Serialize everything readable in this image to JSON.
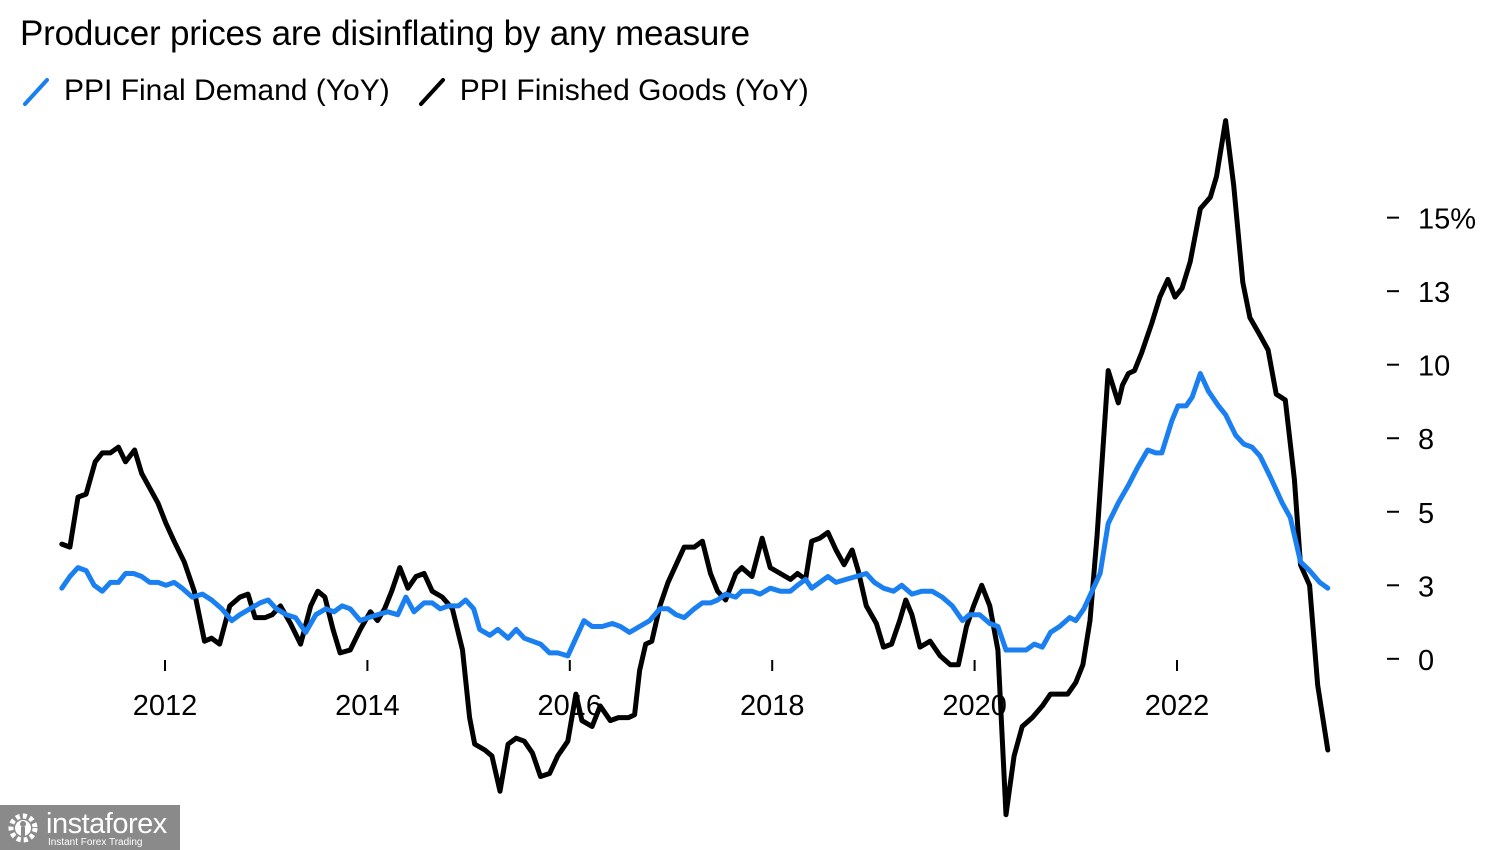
{
  "chart_data": {
    "type": "line",
    "title": "Producer prices are disinflating by any measure",
    "xlabel": "",
    "ylabel": "",
    "xlim": [
      2010,
      2024
    ],
    "ylim": [
      -6.5,
      19
    ],
    "x_ticks": [
      2012,
      2014,
      2016,
      2018,
      2020,
      2022
    ],
    "x_tick_labels": [
      "2012",
      "2014",
      "2016",
      "2018",
      "2020",
      "2022"
    ],
    "y_ticks": [
      15,
      12.5,
      10,
      7.5,
      5,
      2.5,
      0
    ],
    "y_tick_labels": [
      "15%",
      "13",
      "10",
      "8",
      "5",
      "3",
      "0"
    ],
    "y_axis_position": "right",
    "grid": false,
    "legend_position": "top-left",
    "series": [
      {
        "name": "PPI Final Demand (YoY)",
        "color": "#1a7ff0",
        "x": [
          2010.98,
          2011.06,
          2011.14,
          2011.22,
          2011.3,
          2011.38,
          2011.46,
          2011.54,
          2011.61,
          2011.69,
          2011.77,
          2011.85,
          2011.93,
          2012.01,
          2012.09,
          2012.17,
          2012.27,
          2012.37,
          2012.46,
          2012.56,
          2012.66,
          2012.74,
          2012.84,
          2012.94,
          2013.02,
          2013.1,
          2013.2,
          2013.29,
          2013.39,
          2013.49,
          2013.59,
          2013.67,
          2013.75,
          2013.83,
          2013.93,
          2014.01,
          2014.1,
          2014.2,
          2014.3,
          2014.38,
          2014.46,
          2014.56,
          2014.64,
          2014.72,
          2014.8,
          2014.9,
          2014.97,
          2015.05,
          2015.11,
          2015.21,
          2015.29,
          2015.39,
          2015.47,
          2015.55,
          2015.63,
          2015.71,
          2015.8,
          2015.88,
          2015.98,
          2016.06,
          2016.14,
          2016.22,
          2016.32,
          2016.42,
          2016.5,
          2016.59,
          2016.69,
          2016.79,
          2016.89,
          2016.97,
          2017.05,
          2017.13,
          2017.23,
          2017.31,
          2017.39,
          2017.46,
          2017.54,
          2017.64,
          2017.7,
          2017.8,
          2017.88,
          2017.98,
          2018.08,
          2018.18,
          2018.25,
          2018.33,
          2018.39,
          2018.47,
          2018.55,
          2018.63,
          2018.73,
          2018.83,
          2018.93,
          2019.01,
          2019.1,
          2019.2,
          2019.28,
          2019.38,
          2019.48,
          2019.58,
          2019.68,
          2019.78,
          2019.88,
          2019.95,
          2020.05,
          2020.15,
          2020.23,
          2020.31,
          2020.41,
          2020.51,
          2020.59,
          2020.67,
          2020.75,
          2020.84,
          2020.94,
          2021.0,
          2021.08,
          2021.16,
          2021.24,
          2021.32,
          2021.42,
          2021.52,
          2021.61,
          2021.71,
          2021.79,
          2021.85,
          2021.95,
          2022.01,
          2022.09,
          2022.15,
          2022.23,
          2022.31,
          2022.41,
          2022.48,
          2022.58,
          2022.66,
          2022.74,
          2022.82,
          2022.92,
          2023.04,
          2023.12,
          2023.22,
          2023.31,
          2023.41,
          2023.49
        ],
        "y": [
          2.4,
          2.8,
          3.1,
          3.0,
          2.5,
          2.3,
          2.6,
          2.6,
          2.9,
          2.9,
          2.8,
          2.6,
          2.6,
          2.5,
          2.6,
          2.4,
          2.1,
          2.2,
          2.0,
          1.7,
          1.3,
          1.5,
          1.7,
          1.9,
          2.0,
          1.7,
          1.5,
          1.4,
          0.9,
          1.5,
          1.7,
          1.6,
          1.8,
          1.7,
          1.3,
          1.4,
          1.5,
          1.6,
          1.5,
          2.1,
          1.6,
          1.9,
          1.9,
          1.7,
          1.8,
          1.8,
          2.0,
          1.7,
          1.0,
          0.8,
          1.0,
          0.7,
          1.0,
          0.7,
          0.6,
          0.5,
          0.2,
          0.2,
          0.1,
          0.7,
          1.3,
          1.1,
          1.1,
          1.2,
          1.1,
          0.9,
          1.1,
          1.3,
          1.7,
          1.7,
          1.5,
          1.4,
          1.7,
          1.9,
          1.9,
          2.0,
          2.2,
          2.1,
          2.3,
          2.3,
          2.2,
          2.4,
          2.3,
          2.3,
          2.5,
          2.7,
          2.4,
          2.6,
          2.8,
          2.6,
          2.7,
          2.8,
          2.9,
          2.6,
          2.4,
          2.3,
          2.5,
          2.2,
          2.3,
          2.3,
          2.1,
          1.8,
          1.3,
          1.5,
          1.5,
          1.2,
          1.1,
          0.3,
          0.3,
          0.3,
          0.5,
          0.4,
          0.9,
          1.1,
          1.4,
          1.3,
          1.7,
          2.3,
          2.9,
          4.6,
          5.3,
          5.9,
          6.5,
          7.1,
          7.0,
          7.0,
          8.1,
          8.6,
          8.6,
          8.9,
          9.7,
          9.1,
          8.6,
          8.3,
          7.6,
          7.3,
          7.2,
          6.9,
          6.2,
          5.3,
          4.8,
          3.3,
          3.0,
          2.6,
          2.4
        ]
      },
      {
        "name": "PPI Finished Goods (YoY)",
        "color": "#000000",
        "x": [
          2010.98,
          2011.06,
          2011.14,
          2011.22,
          2011.31,
          2011.38,
          2011.46,
          2011.54,
          2011.61,
          2011.7,
          2011.77,
          2011.85,
          2011.93,
          2012.01,
          2012.09,
          2012.19,
          2012.29,
          2012.39,
          2012.46,
          2012.54,
          2012.64,
          2012.74,
          2012.82,
          2012.89,
          2012.99,
          2013.06,
          2013.14,
          2013.24,
          2013.34,
          2013.44,
          2013.51,
          2013.58,
          2013.66,
          2013.73,
          2013.83,
          2013.93,
          2014.03,
          2014.1,
          2014.17,
          2014.24,
          2014.32,
          2014.4,
          2014.48,
          2014.56,
          2014.64,
          2014.74,
          2014.84,
          2014.94,
          2015.01,
          2015.06,
          2015.16,
          2015.23,
          2015.31,
          2015.39,
          2015.47,
          2015.55,
          2015.63,
          2015.71,
          2015.8,
          2015.88,
          2015.98,
          2016.06,
          2016.12,
          2016.22,
          2016.3,
          2016.4,
          2016.48,
          2016.58,
          2016.64,
          2016.69,
          2016.75,
          2016.81,
          2016.89,
          2016.97,
          2017.05,
          2017.13,
          2017.23,
          2017.31,
          2017.39,
          2017.46,
          2017.54,
          2017.64,
          2017.7,
          2017.8,
          2017.9,
          2017.98,
          2018.08,
          2018.18,
          2018.25,
          2018.33,
          2018.39,
          2018.47,
          2018.55,
          2018.63,
          2018.71,
          2018.79,
          2018.85,
          2018.93,
          2019.03,
          2019.1,
          2019.18,
          2019.26,
          2019.32,
          2019.38,
          2019.46,
          2019.56,
          2019.66,
          2019.76,
          2019.84,
          2019.92,
          2019.99,
          2020.07,
          2020.15,
          2020.23,
          2020.31,
          2020.39,
          2020.47,
          2020.57,
          2020.67,
          2020.75,
          2020.84,
          2020.92,
          2021.0,
          2021.07,
          2021.14,
          2021.21,
          2021.32,
          2021.42,
          2021.46,
          2021.52,
          2021.58,
          2021.65,
          2021.75,
          2021.83,
          2021.91,
          2021.98,
          2022.05,
          2022.13,
          2022.23,
          2022.33,
          2022.39,
          2022.48,
          2022.56,
          2022.65,
          2022.72,
          2022.82,
          2022.9,
          2022.98,
          2023.07,
          2023.16,
          2023.22,
          2023.31,
          2023.39,
          2023.49
        ],
        "y": [
          3.9,
          3.8,
          5.5,
          5.6,
          6.7,
          7.0,
          7.0,
          7.2,
          6.7,
          7.1,
          6.3,
          5.8,
          5.3,
          4.6,
          4.0,
          3.3,
          2.3,
          0.6,
          0.7,
          0.5,
          1.8,
          2.1,
          2.2,
          1.4,
          1.4,
          1.5,
          1.8,
          1.2,
          0.5,
          1.8,
          2.3,
          2.1,
          1.0,
          0.2,
          0.3,
          1.0,
          1.6,
          1.3,
          1.7,
          2.3,
          3.1,
          2.4,
          2.8,
          2.9,
          2.3,
          2.1,
          1.7,
          0.3,
          -2.0,
          -2.9,
          -3.1,
          -3.3,
          -4.5,
          -2.9,
          -2.7,
          -2.8,
          -3.2,
          -4.0,
          -3.9,
          -3.3,
          -2.8,
          -1.2,
          -2.1,
          -2.3,
          -1.6,
          -2.1,
          -2.0,
          -2.0,
          -1.9,
          -0.4,
          0.5,
          0.6,
          1.8,
          2.6,
          3.2,
          3.8,
          3.8,
          4.0,
          2.9,
          2.3,
          2.0,
          2.9,
          3.1,
          2.8,
          4.1,
          3.1,
          2.9,
          2.7,
          2.9,
          2.7,
          4.0,
          4.1,
          4.3,
          3.7,
          3.2,
          3.7,
          3.0,
          1.8,
          1.2,
          0.4,
          0.5,
          1.3,
          2.0,
          1.5,
          0.4,
          0.6,
          0.1,
          -0.2,
          -0.2,
          1.1,
          1.8,
          2.5,
          1.8,
          0.3,
          -5.3,
          -3.3,
          -2.3,
          -2.0,
          -1.6,
          -1.2,
          -1.2,
          -1.2,
          -0.8,
          -0.2,
          1.3,
          4.2,
          9.8,
          8.7,
          9.3,
          9.7,
          9.8,
          10.4,
          11.4,
          12.3,
          12.9,
          12.3,
          12.6,
          13.5,
          15.3,
          15.7,
          16.4,
          18.3,
          16.1,
          12.8,
          11.6,
          11.0,
          10.5,
          9.0,
          8.8,
          6.1,
          3.2,
          2.5,
          -0.9,
          -3.1
        ]
      }
    ]
  },
  "logo": {
    "brand": "instaforex",
    "tagline": "Instant Forex Trading"
  }
}
